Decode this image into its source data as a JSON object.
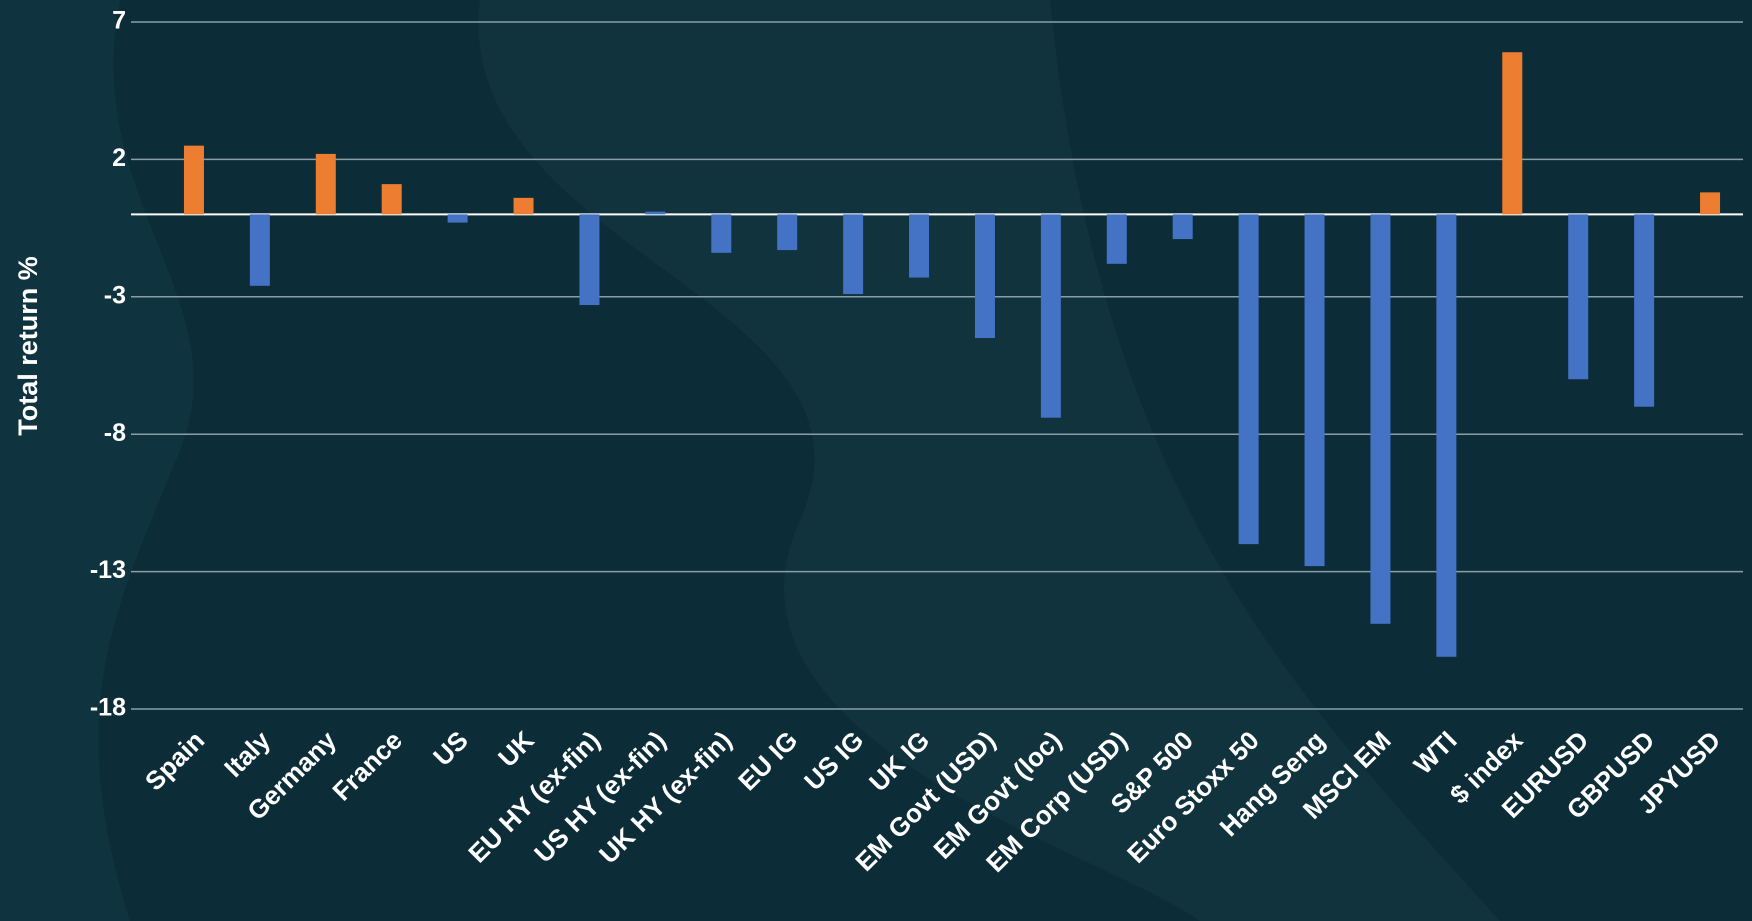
{
  "chart_data": {
    "type": "bar",
    "y_axis_label": "Total return %",
    "categories": [
      "Spain",
      "Italy",
      "Germany",
      "France",
      "US",
      "UK",
      "EU HY (ex-fin)",
      "US HY (ex-fin)",
      "UK HY (ex-fin)",
      "EU IG",
      "US IG",
      "UK IG",
      "EM Govt (USD)",
      "EM Govt (loc)",
      "EM Corp (USD)",
      "S&P 500",
      "Euro Stoxx 50",
      "Hang Seng",
      "MSCI EM",
      "WTI",
      "$ index",
      "EURUSD",
      "GBPUSD",
      "JPYUSD"
    ],
    "values": [
      2.5,
      -2.6,
      2.2,
      1.1,
      -0.3,
      0.6,
      -3.3,
      0.1,
      -1.4,
      -1.3,
      -2.9,
      -2.3,
      -4.5,
      -7.4,
      -1.8,
      -0.9,
      -12.0,
      -12.8,
      -14.9,
      -16.1,
      5.9,
      -6.0,
      -7.0,
      0.8
    ],
    "colors": [
      "#ed7d31",
      "#4472c4",
      "#ed7d31",
      "#ed7d31",
      "#4472c4",
      "#ed7d31",
      "#4472c4",
      "#4472c4",
      "#4472c4",
      "#4472c4",
      "#4472c4",
      "#4472c4",
      "#4472c4",
      "#4472c4",
      "#4472c4",
      "#4472c4",
      "#4472c4",
      "#4472c4",
      "#4472c4",
      "#4472c4",
      "#ed7d31",
      "#4472c4",
      "#4472c4",
      "#ed7d31"
    ],
    "ylim": [
      -18,
      7
    ],
    "yticks": [
      7,
      2,
      -3,
      -8,
      -13,
      -18
    ],
    "grid": true
  }
}
